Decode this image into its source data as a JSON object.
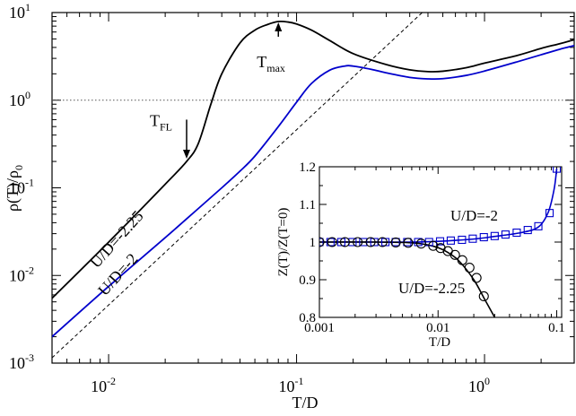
{
  "chart_data": [
    {
      "type": "line",
      "xlabel": "T/D",
      "ylabel": "ρ(T)/ρ",
      "ylabel_sub": "0",
      "xscale": "log",
      "yscale": "log",
      "xlim": [
        0.005,
        3.0
      ],
      "ylim": [
        0.001,
        10
      ],
      "x_ticks": [
        {
          "base": "10",
          "exp": "-2"
        },
        {
          "base": "10",
          "exp": "-1"
        },
        {
          "base": "10",
          "exp": "0"
        }
      ],
      "y_ticks": [
        {
          "base": "10",
          "exp": "-3"
        },
        {
          "base": "10",
          "exp": "-2"
        },
        {
          "base": "10",
          "exp": "-1"
        },
        {
          "base": "10",
          "exp": "0"
        },
        {
          "base": "10",
          "exp": "1"
        }
      ],
      "series": [
        {
          "name": "U/D=-2.25",
          "color": "#000000",
          "x": [
            0.005,
            0.01,
            0.02,
            0.026,
            0.03,
            0.035,
            0.04,
            0.05,
            0.06,
            0.07,
            0.08,
            0.09,
            0.1,
            0.12,
            0.15,
            0.2,
            0.3,
            0.4,
            0.5,
            0.6,
            0.8,
            1.0,
            1.5,
            2.0,
            2.5,
            3.0
          ],
          "y": [
            0.0055,
            0.024,
            0.11,
            0.2,
            0.32,
            0.9,
            2.0,
            4.5,
            6.3,
            7.3,
            7.9,
            7.8,
            7.4,
            6.3,
            4.8,
            3.4,
            2.55,
            2.22,
            2.12,
            2.14,
            2.35,
            2.65,
            3.25,
            3.9,
            4.4,
            4.9
          ]
        },
        {
          "name": "U/D=-2",
          "color": "#0000cc",
          "x": [
            0.005,
            0.01,
            0.02,
            0.03,
            0.04,
            0.05,
            0.06,
            0.08,
            0.1,
            0.12,
            0.15,
            0.18,
            0.2,
            0.25,
            0.3,
            0.4,
            0.5,
            0.6,
            0.8,
            1.0,
            1.5,
            2.0,
            2.5,
            3.0
          ],
          "y": [
            0.002,
            0.0075,
            0.027,
            0.058,
            0.1,
            0.155,
            0.23,
            0.5,
            0.95,
            1.55,
            2.2,
            2.45,
            2.45,
            2.25,
            2.05,
            1.82,
            1.75,
            1.76,
            1.92,
            2.15,
            2.75,
            3.3,
            3.8,
            4.2
          ]
        },
        {
          "name": "",
          "color": "#000000",
          "style": "dashed",
          "x": [
            0.005,
            3.0
          ],
          "y": [
            0.00115,
            414.0
          ]
        }
      ],
      "reference_lines": [
        {
          "y": 1.0,
          "style": "dotted",
          "color": "#555555"
        }
      ],
      "annotations": {
        "tmax": {
          "label": "T",
          "sub": "max",
          "arrow_x": 0.08,
          "arrow_from_y": 5.3,
          "arrow_to_y": 7.9
        },
        "tfl": {
          "label": "T",
          "sub": "FL",
          "arrow_x": 0.026,
          "arrow_from_y": 0.6,
          "arrow_to_y": 0.21
        },
        "series_label_a": "U/D=-2.25",
        "series_label_b": "U/D=-2"
      }
    },
    {
      "type": "line",
      "xlabel": "T/D",
      "ylabel": "Z(T)/Z(T=0)",
      "xscale": "log",
      "xlim": [
        0.001,
        0.11
      ],
      "ylim": [
        0.8,
        1.2
      ],
      "x_ticks": [
        "0.001",
        "0.01",
        "0.1"
      ],
      "y_ticks": [
        "0.8",
        "0.9",
        "1",
        "1.1",
        "1.2"
      ],
      "series": [
        {
          "name": "U/D=-2",
          "color": "#0000cc",
          "marker": "square",
          "line_x": [
            0.001,
            0.003,
            0.006,
            0.01,
            0.02,
            0.03,
            0.05,
            0.07,
            0.085,
            0.095,
            0.1
          ],
          "line_y": [
            1.0,
            1.0,
            1.0,
            1.002,
            1.008,
            1.015,
            1.025,
            1.04,
            1.08,
            1.14,
            1.195
          ],
          "points_x": [
            0.001,
            0.00124,
            0.00153,
            0.0019,
            0.00234,
            0.0029,
            0.0036,
            0.0044,
            0.0055,
            0.0068,
            0.0084,
            0.0104,
            0.0128,
            0.0159,
            0.0196,
            0.0243,
            0.03,
            0.037,
            0.046,
            0.057,
            0.07,
            0.087,
            0.1
          ],
          "points_y": [
            1.0,
            1.0,
            1.0,
            1.0,
            1.0,
            1.0,
            1.0,
            1.0,
            1.0,
            1.0,
            1.0,
            1.002,
            1.004,
            1.006,
            1.009,
            1.013,
            1.016,
            1.02,
            1.025,
            1.032,
            1.042,
            1.077,
            1.195
          ]
        },
        {
          "name": "U/D=-2.25",
          "color": "#000000",
          "marker": "circle",
          "line_x": [
            0.001,
            0.003,
            0.006,
            0.008,
            0.01,
            0.012,
            0.015,
            0.02,
            0.025,
            0.03
          ],
          "line_y": [
            1.0,
            1.0,
            0.998,
            0.993,
            0.985,
            0.973,
            0.95,
            0.9,
            0.845,
            0.8
          ],
          "points_x": [
            0.001,
            0.00128,
            0.00164,
            0.0021,
            0.0027,
            0.0034,
            0.0044,
            0.0056,
            0.0072,
            0.0091,
            0.0105,
            0.0121,
            0.0139,
            0.016,
            0.0184,
            0.0211,
            0.0243
          ],
          "points_y": [
            1.0,
            1.0,
            1.0,
            1.0,
            1.0,
            1.0,
            0.999,
            0.998,
            0.996,
            0.99,
            0.984,
            0.976,
            0.966,
            0.952,
            0.932,
            0.905,
            0.856
          ]
        }
      ],
      "annotations": {
        "label_a": "U/D=-2",
        "label_b": "U/D=-2.25"
      }
    }
  ]
}
